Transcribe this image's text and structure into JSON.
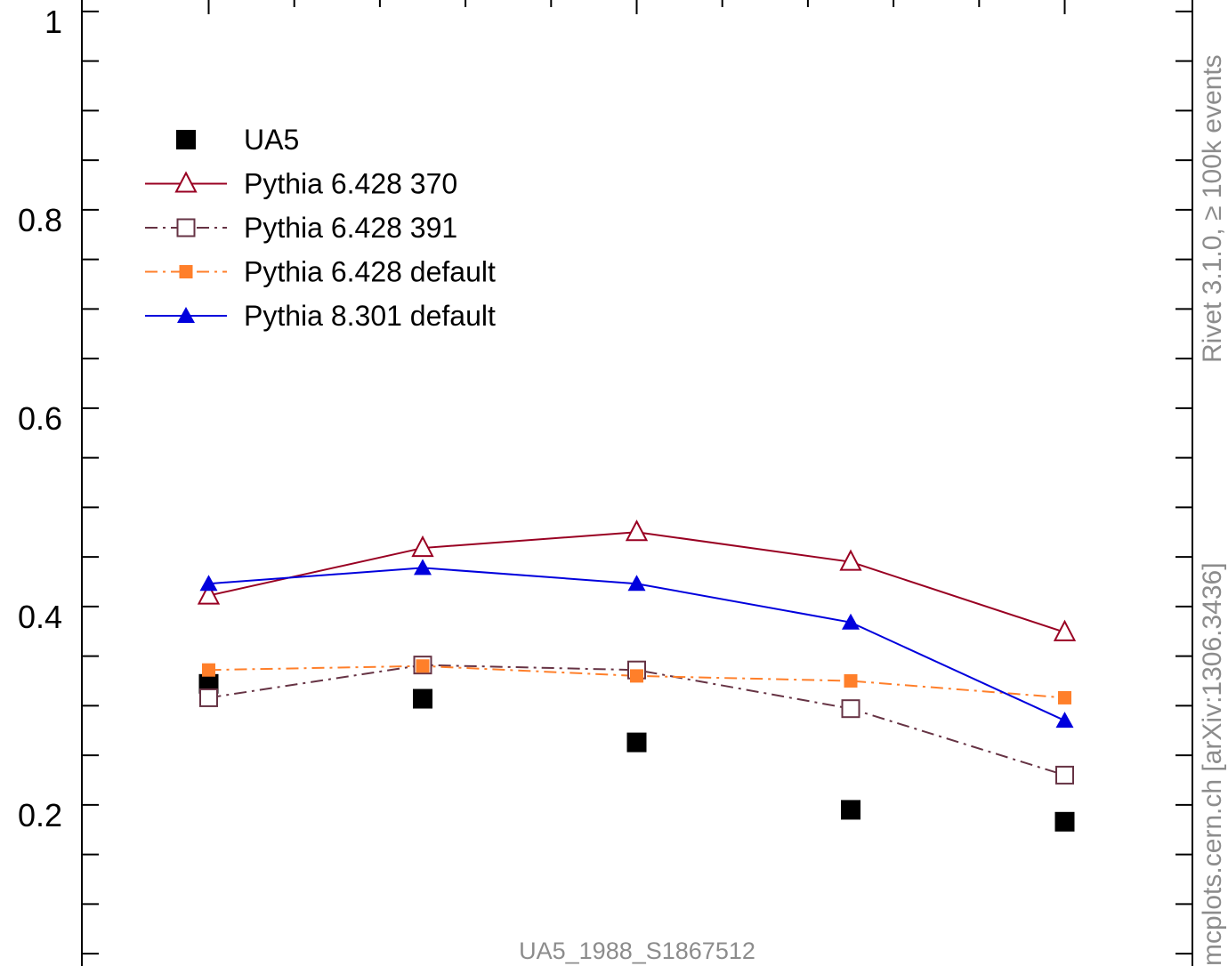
{
  "chart_data": {
    "type": "scatter",
    "title": "",
    "xlabel": "",
    "ylabel": "",
    "ylim": [
      0.06,
      1.02
    ],
    "yticks": [
      0.2,
      0.4,
      0.6,
      0.8,
      1.0
    ],
    "ytick_labels": [
      "0.2",
      "0.4",
      "0.6",
      "0.8",
      "1"
    ],
    "x": [
      1,
      2,
      3,
      4,
      5
    ],
    "grid": false,
    "legend_position": "top-left",
    "series": [
      {
        "name": "UA5",
        "values": [
          0.332,
          0.317,
          0.273,
          0.205,
          0.193
        ],
        "color": "#000000",
        "marker": "square-filled",
        "line": "none"
      },
      {
        "name": "Pythia 6.428 370",
        "values": [
          0.421,
          0.469,
          0.485,
          0.455,
          0.384
        ],
        "color": "#990022",
        "marker": "triangle-open",
        "line": "solid"
      },
      {
        "name": "Pythia 6.428 391",
        "values": [
          0.318,
          0.351,
          0.346,
          0.307,
          0.24
        ],
        "color": "#663344",
        "marker": "square-open",
        "line": "dashdot"
      },
      {
        "name": "Pythia 6.428 default",
        "values": [
          0.346,
          0.35,
          0.34,
          0.335,
          0.318
        ],
        "color": "#ff7f2a",
        "marker": "square-filled-small",
        "line": "dashdot"
      },
      {
        "name": "Pythia 8.301 default",
        "values": [
          0.433,
          0.449,
          0.433,
          0.394,
          0.295
        ],
        "color": "#0000dd",
        "marker": "triangle-filled",
        "line": "solid"
      }
    ]
  },
  "watermark": "UA5_1988_S1867512",
  "side_text_top": "Rivet 3.1.0, ≥ 100k events",
  "side_text_bottom": "mcplots.cern.ch [arXiv:1306.3436]"
}
